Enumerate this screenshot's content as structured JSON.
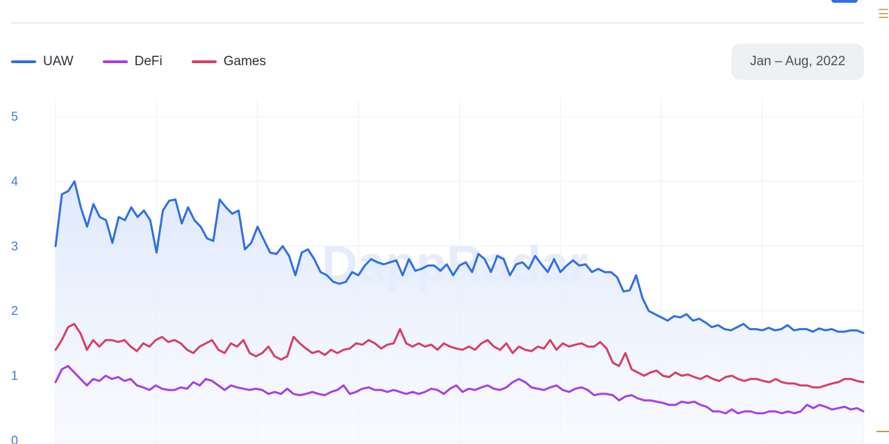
{
  "header": {
    "date_range": "Jan – Aug, 2022"
  },
  "colors": {
    "uaw": "#2f6fe4",
    "defi": "#a63ee6",
    "games": "#d83d64",
    "grid": "#eceff4",
    "axis_label": "#3c7de0",
    "area_fill": "#e8f0fe"
  },
  "watermark": "DappRadar",
  "chart_data": {
    "type": "line",
    "title": "",
    "xlabel": "",
    "ylabel": "",
    "x_range": [
      "2022-01-01",
      "2022-08-31"
    ],
    "ylim": [
      0,
      5
    ],
    "y_ticks": [
      "0",
      "1",
      "2",
      "3",
      "4",
      "5"
    ],
    "grid": true,
    "legend_position": "top-left",
    "series": [
      {
        "name": "UAW",
        "color": "#2f6fe4",
        "fill": true,
        "values": [
          3.0,
          3.8,
          3.85,
          4.0,
          3.6,
          3.3,
          3.65,
          3.45,
          3.4,
          3.05,
          3.45,
          3.4,
          3.6,
          3.45,
          3.55,
          3.4,
          2.9,
          3.55,
          3.7,
          3.72,
          3.35,
          3.6,
          3.4,
          3.3,
          3.12,
          3.08,
          3.72,
          3.6,
          3.5,
          3.55,
          2.95,
          3.05,
          3.3,
          3.1,
          2.9,
          2.88,
          3.0,
          2.85,
          2.55,
          2.9,
          2.95,
          2.8,
          2.6,
          2.55,
          2.45,
          2.42,
          2.45,
          2.6,
          2.55,
          2.7,
          2.8,
          2.75,
          2.72,
          2.75,
          2.78,
          2.55,
          2.8,
          2.62,
          2.65,
          2.7,
          2.7,
          2.62,
          2.72,
          2.55,
          2.7,
          2.75,
          2.6,
          2.88,
          2.8,
          2.6,
          2.85,
          2.8,
          2.55,
          2.72,
          2.75,
          2.65,
          2.85,
          2.72,
          2.6,
          2.8,
          2.6,
          2.7,
          2.78,
          2.7,
          2.72,
          2.6,
          2.65,
          2.6,
          2.6,
          2.52,
          2.3,
          2.32,
          2.55,
          2.2,
          2.0,
          1.95,
          1.9,
          1.85,
          1.92,
          1.9,
          1.95,
          1.85,
          1.88,
          1.82,
          1.75,
          1.78,
          1.72,
          1.7,
          1.75,
          1.8,
          1.72,
          1.72,
          1.7,
          1.74,
          1.7,
          1.72,
          1.78,
          1.7,
          1.72,
          1.72,
          1.68,
          1.73,
          1.7,
          1.72,
          1.68,
          1.68,
          1.7,
          1.7,
          1.66
        ]
      },
      {
        "name": "DeFi",
        "color": "#a63ee6",
        "fill": false,
        "values": [
          0.9,
          1.1,
          1.15,
          1.05,
          0.95,
          0.85,
          0.95,
          0.92,
          1.0,
          0.95,
          0.98,
          0.92,
          0.95,
          0.85,
          0.82,
          0.78,
          0.85,
          0.8,
          0.78,
          0.78,
          0.82,
          0.8,
          0.9,
          0.85,
          0.95,
          0.92,
          0.85,
          0.78,
          0.85,
          0.82,
          0.8,
          0.78,
          0.8,
          0.78,
          0.72,
          0.75,
          0.72,
          0.8,
          0.72,
          0.7,
          0.72,
          0.75,
          0.72,
          0.7,
          0.75,
          0.78,
          0.85,
          0.72,
          0.75,
          0.8,
          0.82,
          0.78,
          0.78,
          0.75,
          0.78,
          0.75,
          0.72,
          0.75,
          0.72,
          0.75,
          0.8,
          0.78,
          0.72,
          0.8,
          0.85,
          0.75,
          0.8,
          0.78,
          0.82,
          0.85,
          0.8,
          0.78,
          0.82,
          0.9,
          0.95,
          0.9,
          0.82,
          0.8,
          0.78,
          0.82,
          0.85,
          0.78,
          0.75,
          0.8,
          0.82,
          0.78,
          0.7,
          0.72,
          0.72,
          0.7,
          0.62,
          0.68,
          0.7,
          0.65,
          0.62,
          0.62,
          0.6,
          0.58,
          0.55,
          0.55,
          0.6,
          0.58,
          0.6,
          0.55,
          0.52,
          0.45,
          0.45,
          0.42,
          0.48,
          0.42,
          0.45,
          0.45,
          0.42,
          0.42,
          0.45,
          0.45,
          0.42,
          0.45,
          0.42,
          0.45,
          0.55,
          0.5,
          0.55,
          0.52,
          0.48,
          0.5,
          0.52,
          0.48,
          0.5,
          0.45
        ]
      },
      {
        "name": "Games",
        "color": "#d83d64",
        "fill": false,
        "values": [
          1.4,
          1.55,
          1.75,
          1.8,
          1.65,
          1.4,
          1.55,
          1.45,
          1.55,
          1.55,
          1.52,
          1.55,
          1.45,
          1.38,
          1.5,
          1.45,
          1.55,
          1.6,
          1.52,
          1.55,
          1.5,
          1.4,
          1.35,
          1.45,
          1.5,
          1.55,
          1.4,
          1.35,
          1.5,
          1.45,
          1.55,
          1.35,
          1.3,
          1.35,
          1.45,
          1.3,
          1.25,
          1.3,
          1.6,
          1.5,
          1.42,
          1.35,
          1.38,
          1.32,
          1.4,
          1.35,
          1.4,
          1.42,
          1.5,
          1.48,
          1.55,
          1.5,
          1.42,
          1.48,
          1.5,
          1.72,
          1.5,
          1.45,
          1.5,
          1.45,
          1.48,
          1.4,
          1.5,
          1.45,
          1.42,
          1.4,
          1.45,
          1.4,
          1.5,
          1.55,
          1.45,
          1.4,
          1.5,
          1.35,
          1.45,
          1.4,
          1.38,
          1.45,
          1.42,
          1.55,
          1.4,
          1.5,
          1.45,
          1.48,
          1.5,
          1.45,
          1.45,
          1.52,
          1.42,
          1.2,
          1.15,
          1.35,
          1.1,
          1.05,
          1.0,
          1.05,
          1.08,
          1.0,
          0.98,
          1.05,
          1.0,
          1.02,
          0.98,
          0.95,
          1.0,
          0.95,
          0.92,
          0.98,
          1.0,
          0.95,
          0.92,
          0.95,
          0.95,
          0.92,
          0.9,
          0.95,
          0.9,
          0.88,
          0.88,
          0.85,
          0.85,
          0.82,
          0.82,
          0.85,
          0.88,
          0.9,
          0.95,
          0.95,
          0.92,
          0.9
        ]
      }
    ]
  }
}
